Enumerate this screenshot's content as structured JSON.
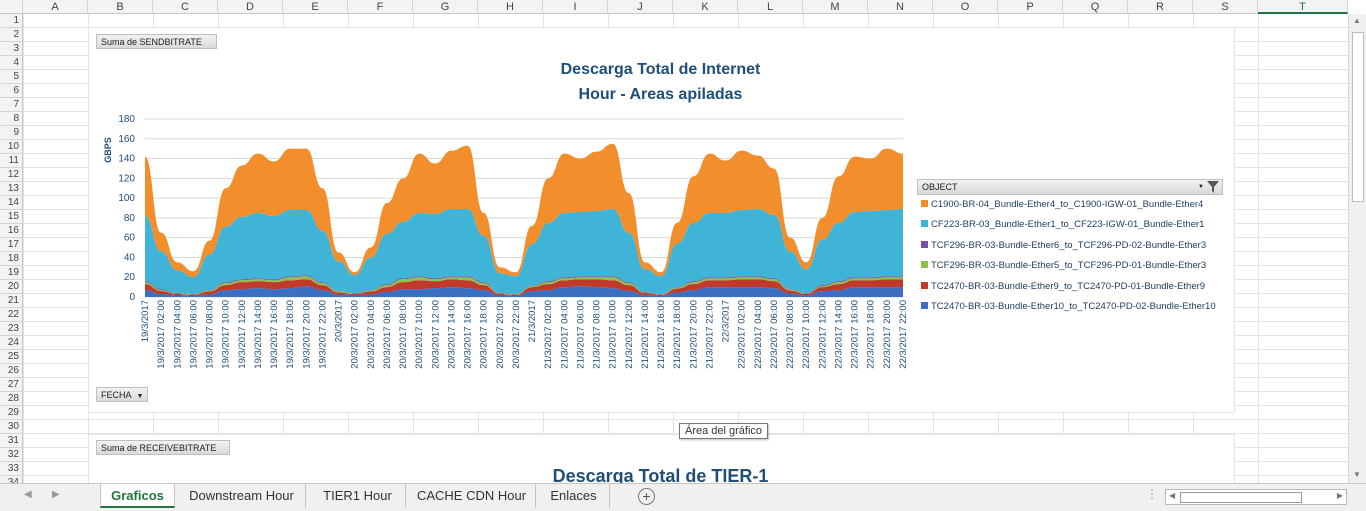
{
  "columns": [
    "A",
    "B",
    "C",
    "D",
    "E",
    "F",
    "G",
    "H",
    "I",
    "J",
    "K",
    "L",
    "M",
    "N",
    "O",
    "P",
    "Q",
    "R",
    "S",
    "T"
  ],
  "rows": [
    "1",
    "2",
    "3",
    "4",
    "5",
    "6",
    "7",
    "8",
    "9",
    "10",
    "11",
    "12",
    "13",
    "14",
    "15",
    "16",
    "17",
    "18",
    "19",
    "20",
    "21",
    "22",
    "23",
    "24",
    "25",
    "26",
    "27",
    "28",
    "29",
    "30",
    "31",
    "32",
    "33",
    "34"
  ],
  "chart1": {
    "value_field_button": "Suma de SENDBITRATE",
    "axis_field_button": "FECHA",
    "legend_field_button": "OBJECT",
    "title_line1": "Descarga Total de Internet",
    "title_line2": "Hour - Areas apiladas"
  },
  "chart2": {
    "value_field_button": "Suma de RECEIVEBITRATE",
    "title_line1": "Descarga Total de TIER-1"
  },
  "tooltip": "Área del gráfico",
  "sheet_tabs": [
    "Graficos",
    "Downstream Hour",
    "TIER1 Hour",
    "CACHE CDN Hour",
    "Enlaces"
  ],
  "active_tab": "Graficos",
  "chart_data": {
    "type": "area",
    "stacked": true,
    "title": "Descarga Total de Internet",
    "subtitle": "Hour - Areas apiladas",
    "xlabel": "",
    "ylabel": "GBPS",
    "ylim": [
      0,
      180
    ],
    "yticks": [
      0,
      20,
      40,
      60,
      80,
      100,
      120,
      140,
      160,
      180
    ],
    "grid": true,
    "legend_position": "right",
    "legend_title": "OBJECT",
    "x": [
      "19/3/2017",
      "19/3/2017 02:00",
      "19/3/2017 04:00",
      "19/3/2017 06:00",
      "19/3/2017 08:00",
      "19/3/2017 10:00",
      "19/3/2017 12:00",
      "19/3/2017 14:00",
      "19/3/2017 16:00",
      "19/3/2017 18:00",
      "19/3/2017 20:00",
      "19/3/2017 22:00",
      "20/3/2017",
      "20/3/2017 02:00",
      "20/3/2017 04:00",
      "20/3/2017 06:00",
      "20/3/2017 08:00",
      "20/3/2017 10:00",
      "20/3/2017 12:00",
      "20/3/2017 14:00",
      "20/3/2017 16:00",
      "20/3/2017 18:00",
      "20/3/2017 20:00",
      "20/3/2017 22:00",
      "21/3/2017",
      "21/3/2017 02:00",
      "21/3/2017 04:00",
      "21/3/2017 06:00",
      "21/3/2017 08:00",
      "21/3/2017 10:00",
      "21/3/2017 12:00",
      "21/3/2017 14:00",
      "21/3/2017 16:00",
      "21/3/2017 18:00",
      "21/3/2017 20:00",
      "21/3/2017 22:00",
      "22/3/2017",
      "22/3/2017 02:00",
      "22/3/2017 04:00",
      "22/3/2017 06:00",
      "22/3/2017 08:00",
      "22/3/2017 10:00",
      "22/3/2017 12:00",
      "22/3/2017 14:00",
      "22/3/2017 16:00",
      "22/3/2017 18:00",
      "22/3/2017 20:00",
      "22/3/2017 22:00"
    ],
    "total": [
      142,
      65,
      35,
      26,
      57,
      110,
      133,
      145,
      137,
      150,
      150,
      110,
      45,
      25,
      50,
      95,
      120,
      145,
      135,
      148,
      153,
      85,
      30,
      25,
      72,
      120,
      145,
      140,
      147,
      155,
      105,
      35,
      25,
      75,
      122,
      145,
      138,
      148,
      143,
      130,
      60,
      35,
      80,
      122,
      142,
      140,
      150,
      145
    ],
    "series": [
      {
        "name": "C1900-BR-04_Bundle-Ether4_to_C1900-IGW-01_Bundle-Ether4",
        "color": "#f28e2b",
        "values": [
          60,
          19,
          8,
          6,
          14,
          39,
          52,
          60,
          55,
          62,
          62,
          43,
          9,
          3,
          10,
          31,
          44,
          60,
          51,
          59,
          64,
          23,
          6,
          4,
          18,
          45,
          60,
          54,
          60,
          66,
          40,
          7,
          4,
          21,
          47,
          60,
          53,
          60,
          54,
          47,
          14,
          7,
          22,
          47,
          56,
          53,
          62,
          56
        ]
      },
      {
        "name": "CF223-BR-03_Bundle-Ether1_to_CF223-IGW-01_Bundle-Ether1",
        "color": "#3fb4d6",
        "values": [
          66,
          38,
          23,
          17,
          36,
          56,
          63,
          66,
          64,
          67,
          66,
          52,
          30,
          18,
          33,
          51,
          57,
          64,
          65,
          68,
          68,
          47,
          20,
          18,
          42,
          59,
          65,
          65,
          66,
          68,
          50,
          23,
          18,
          44,
          59,
          65,
          65,
          67,
          68,
          64,
          38,
          24,
          46,
          59,
          66,
          67,
          67,
          68
        ]
      },
      {
        "name": "TCF296-BR-03-Bundle-Ether6_to_TCF296-PD-02-Bundle-Ether3",
        "color": "#7b4fa8",
        "values": [
          1,
          1,
          0.5,
          0.5,
          0.5,
          1,
          1,
          1,
          1,
          1,
          1,
          1,
          0.5,
          0.5,
          0.5,
          1,
          1,
          1,
          1,
          1,
          1,
          1,
          0.5,
          0.5,
          0.5,
          1,
          1,
          1,
          1,
          1,
          1,
          0.5,
          0.5,
          0.5,
          1,
          1,
          1,
          1,
          1,
          1,
          0.5,
          0.5,
          1,
          1,
          1,
          1,
          1,
          1
        ]
      },
      {
        "name": "TCF296-BR-03-Bundle-Ether5_to_TCF296-PD-01-Bundle-Ether3",
        "color": "#8bc34a",
        "values": [
          2,
          1,
          0.5,
          0.5,
          1,
          2,
          2,
          2,
          2,
          3,
          3,
          2,
          1,
          0.5,
          1,
          2,
          3,
          3,
          2,
          2,
          3,
          2,
          0.5,
          0.5,
          1,
          2,
          2,
          2,
          2,
          3,
          2,
          0.5,
          0.5,
          1,
          2,
          2,
          2,
          2,
          2,
          2,
          1,
          0.5,
          1,
          2,
          2,
          2,
          2,
          2
        ]
      },
      {
        "name": "TC2470-BR-03-Bundle-Ether9_to_TC2470-PD-01-Bundle-Ether9",
        "color": "#c0392b",
        "values": [
          6,
          3,
          1.5,
          1,
          3,
          5,
          7,
          7,
          7,
          8,
          7,
          5,
          2,
          1,
          3,
          5,
          7,
          9,
          7,
          8,
          8,
          5,
          1.5,
          1,
          4,
          6,
          7,
          7,
          8,
          8,
          6,
          2,
          1,
          4,
          6,
          7,
          7,
          8,
          8,
          7,
          3,
          1.5,
          4,
          6,
          7,
          7,
          8,
          8
        ]
      },
      {
        "name": "TC2470-BR-03-Bundle-Ether10_to_TC2470-PD-02-Bundle-Ether10",
        "color": "#3a6fc4",
        "values": [
          7,
          3,
          1.5,
          1,
          2.5,
          7,
          8,
          9,
          8,
          9,
          11,
          7,
          2.5,
          2,
          2.5,
          5,
          8,
          8,
          9,
          10,
          9,
          7,
          1.5,
          1,
          6,
          7,
          10,
          11,
          10,
          9,
          6,
          2,
          1,
          4.5,
          7,
          10,
          10,
          10,
          10,
          9,
          3.5,
          1.5,
          6,
          7,
          10,
          10,
          10,
          10
        ]
      }
    ]
  }
}
